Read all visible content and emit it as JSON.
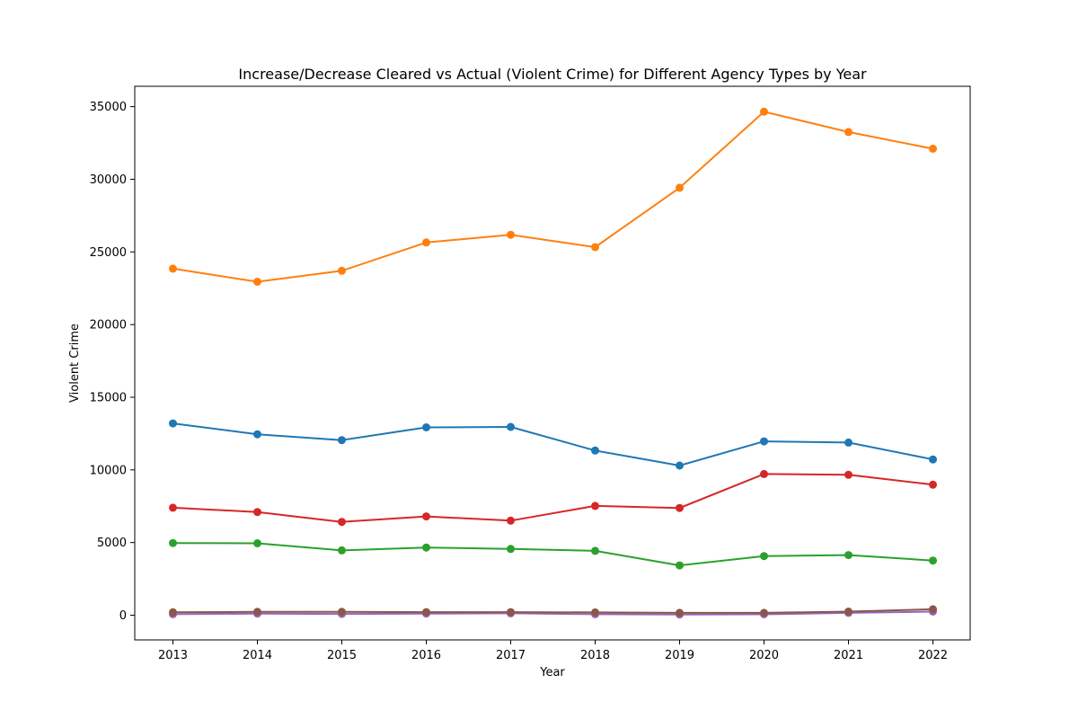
{
  "chart_data": {
    "type": "line",
    "title": "Increase/Decrease Cleared vs Actual (Violent Crime) for Different Agency Types by Year",
    "xlabel": "Year",
    "ylabel": "Violent Crime",
    "x": [
      "2013",
      "2014",
      "2015",
      "2016",
      "2017",
      "2018",
      "2019",
      "2020",
      "2021",
      "2022"
    ],
    "xticks": [
      "2013",
      "2014",
      "2015",
      "2016",
      "2017",
      "2018",
      "2019",
      "2020",
      "2021",
      "2022"
    ],
    "yticks": [
      "0",
      "5000",
      "10000",
      "15000",
      "20000",
      "25000",
      "30000",
      "35000"
    ],
    "ylim": [
      -1700,
      36400
    ],
    "grid": false,
    "markers": true,
    "series": [
      {
        "color": "#1f77b4",
        "values": [
          13200,
          12450,
          12050,
          12930,
          12960,
          11330,
          10300,
          11960,
          11880,
          10720
        ]
      },
      {
        "color": "#ff7f0e",
        "values": [
          23850,
          22950,
          23700,
          25650,
          26180,
          25330,
          29420,
          34650,
          33250,
          32100
        ]
      },
      {
        "color": "#2ca02c",
        "values": [
          4970,
          4950,
          4460,
          4660,
          4560,
          4430,
          3430,
          4070,
          4140,
          3760
        ]
      },
      {
        "color": "#d62728",
        "values": [
          7400,
          7100,
          6420,
          6800,
          6510,
          7520,
          7380,
          9720,
          9660,
          8980
        ]
      },
      {
        "color": "#9467bd",
        "values": [
          70,
          110,
          90,
          110,
          130,
          70,
          50,
          60,
          160,
          250
        ]
      },
      {
        "color": "#8c564b",
        "values": [
          200,
          230,
          230,
          210,
          210,
          190,
          160,
          160,
          250,
          410
        ]
      }
    ]
  }
}
